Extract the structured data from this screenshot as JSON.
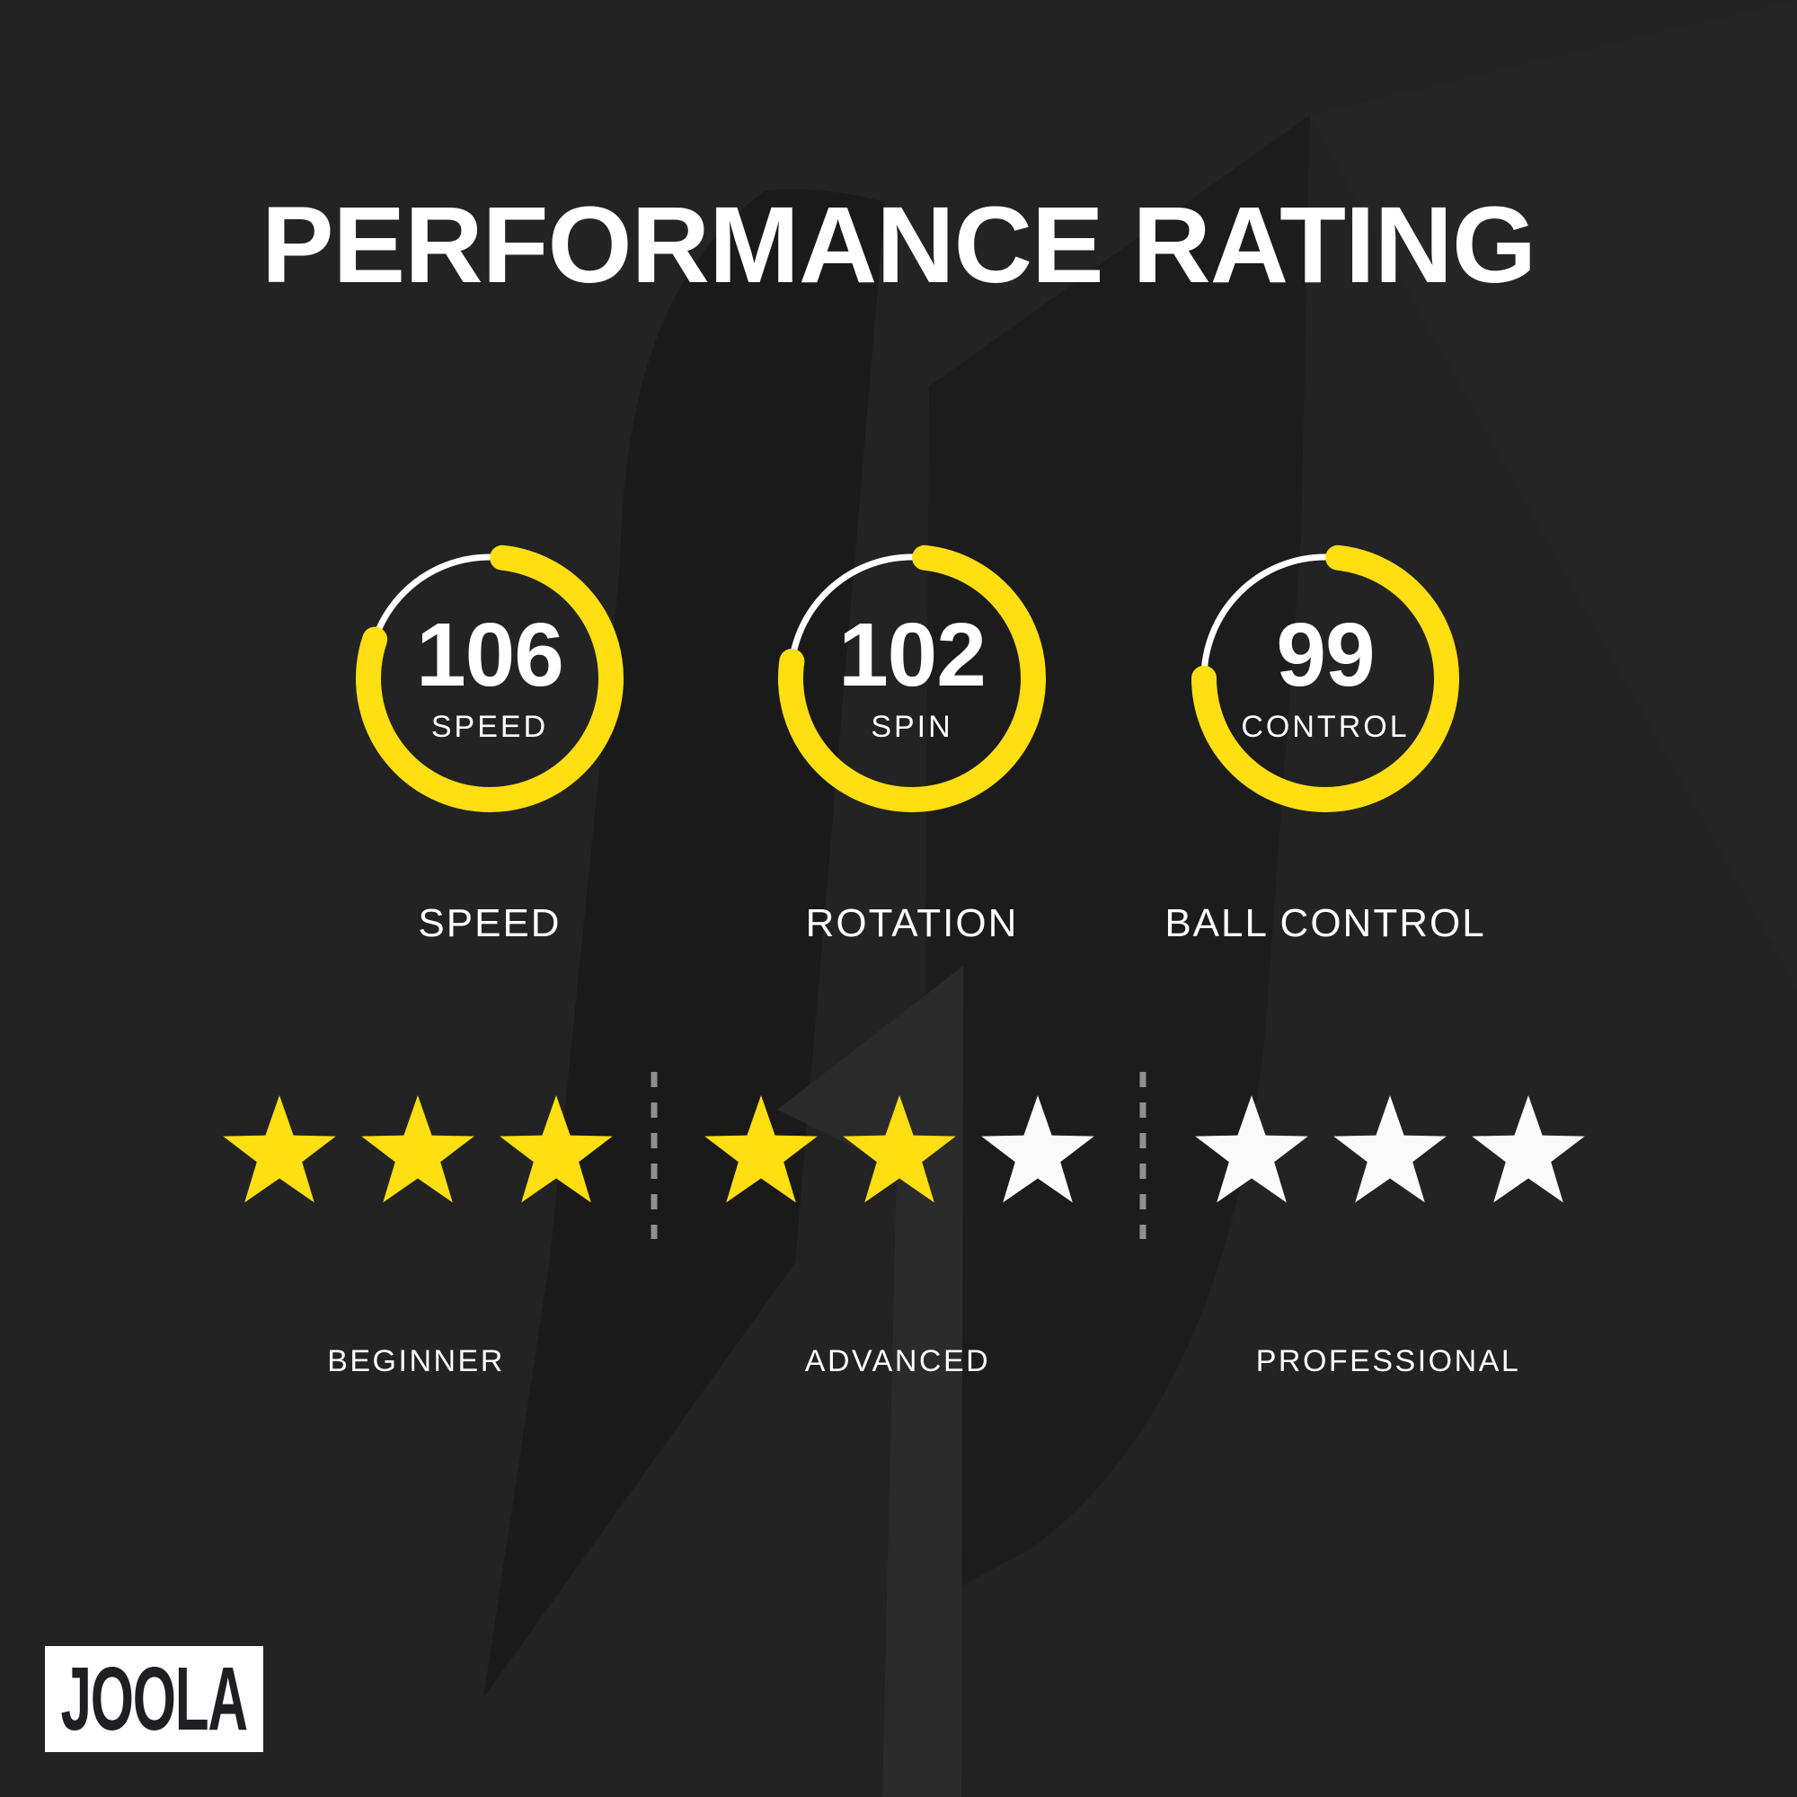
{
  "title": "PERFORMANCE RATING",
  "brand": {
    "logo_text": "JOOLA"
  },
  "colors": {
    "background": "#232323",
    "accent_yellow": "#FFDE12",
    "white": "#FFFFFF",
    "star_unfilled": "#FAFAFA",
    "divider": "#9C9C9C",
    "watermark_dark": "#1A1A1A",
    "watermark_mid": "#1C1C1C",
    "watermark_light": "#2B2B2B",
    "logo_background": "#FFFFFF",
    "logo_text_color": "#1F1F23"
  },
  "chart_data": {
    "type": "radial-gauge-set",
    "title": "PERFORMANCE RATING",
    "gauges": [
      {
        "value": 106,
        "unit_label": "SPEED",
        "category_label": "SPEED"
      },
      {
        "value": 102,
        "unit_label": "SPIN",
        "category_label": "ROTATION"
      },
      {
        "value": 99,
        "unit_label": "CONTROL",
        "category_label": "BALL CONTROL"
      }
    ],
    "levels": [
      {
        "label": "BEGINNER",
        "filled": 3,
        "total": 3
      },
      {
        "label": "ADVANCED",
        "filled": 2,
        "total": 3
      },
      {
        "label": "PROFESSIONAL",
        "filled": 0,
        "total": 3
      }
    ]
  }
}
